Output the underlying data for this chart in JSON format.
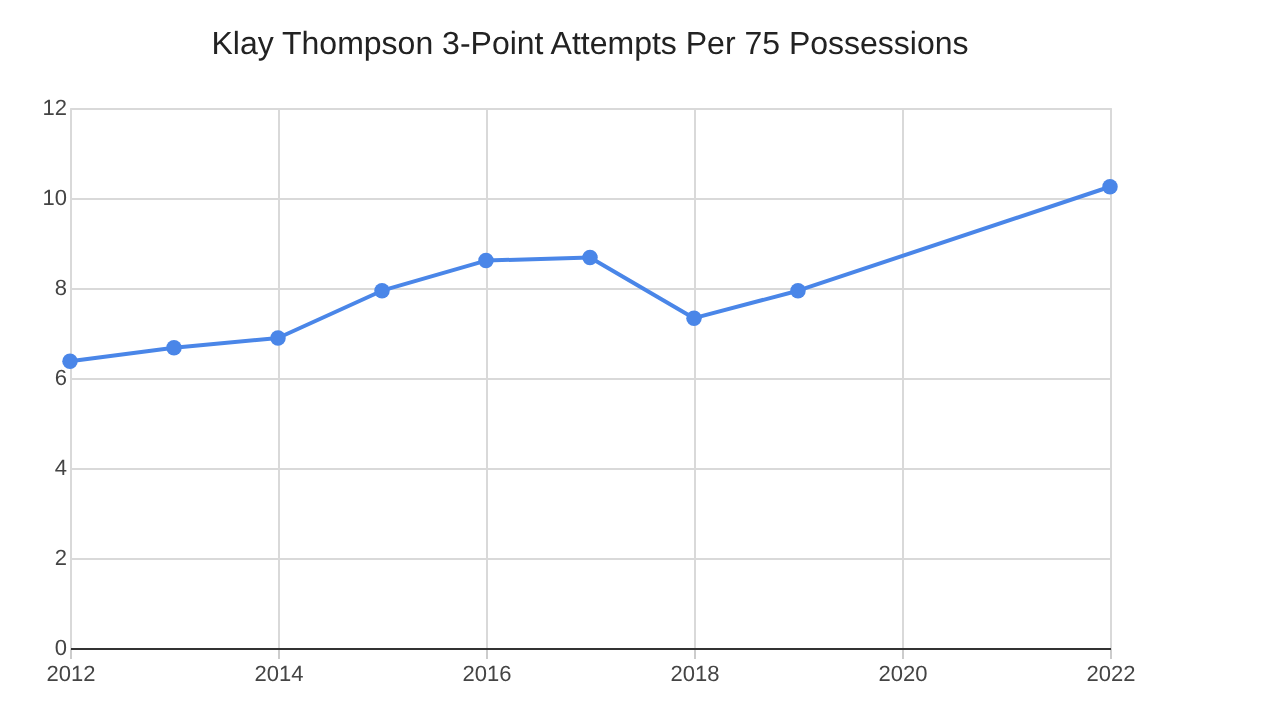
{
  "chart_data": {
    "type": "line",
    "title": "Klay Thompson 3-Point Attempts Per 75 Possessions",
    "x": [
      2012,
      2013,
      2014,
      2015,
      2016,
      2017,
      2018,
      2019,
      2022
    ],
    "series": [
      {
        "color": "#4a86e8",
        "values": [
          6.37,
          6.67,
          6.89,
          7.94,
          8.61,
          8.68,
          7.33,
          7.94,
          10.25
        ]
      }
    ],
    "xlim": [
      2012,
      2022
    ],
    "xticks": [
      2012,
      2014,
      2016,
      2018,
      2020,
      2022
    ],
    "ylim": [
      0,
      12
    ],
    "yticks": [
      0,
      2,
      4,
      6,
      8,
      10,
      12
    ],
    "grid": true,
    "marker": "circle",
    "line_style": "solid"
  }
}
